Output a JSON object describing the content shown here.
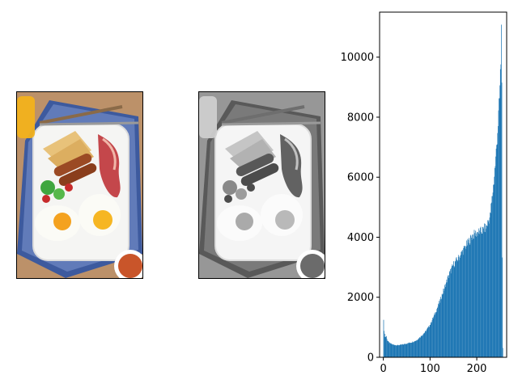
{
  "figure": {
    "panels": [
      {
        "name": "original-color-photo",
        "content_icon": "breakfast-plate-photo"
      },
      {
        "name": "grayscale-photo",
        "content_icon": "breakfast-plate-photo-grayscale"
      }
    ]
  },
  "chart_data": {
    "type": "bar",
    "title": "",
    "xlabel": "",
    "ylabel": "",
    "xlim": [
      -8,
      264
    ],
    "ylim": [
      0,
      11500
    ],
    "xticks": [
      0,
      100,
      200
    ],
    "yticks": [
      0,
      2000,
      4000,
      6000,
      8000,
      10000
    ],
    "xtick_labels": [
      "0",
      "100",
      "200"
    ],
    "ytick_labels": [
      "0",
      "2000",
      "4000",
      "6000",
      "8000",
      "10000"
    ],
    "bar_color": "#1f77b4",
    "grid": false,
    "bins": 256,
    "key_points": [
      [
        0,
        1300
      ],
      [
        1,
        850
      ],
      [
        2,
        700
      ],
      [
        3,
        780
      ],
      [
        4,
        680
      ],
      [
        6,
        700
      ],
      [
        8,
        560
      ],
      [
        12,
        480
      ],
      [
        20,
        420
      ],
      [
        30,
        400
      ],
      [
        40,
        420
      ],
      [
        50,
        460
      ],
      [
        60,
        500
      ],
      [
        70,
        560
      ],
      [
        80,
        700
      ],
      [
        90,
        860
      ],
      [
        100,
        1100
      ],
      [
        110,
        1450
      ],
      [
        120,
        1850
      ],
      [
        130,
        2300
      ],
      [
        140,
        2750
      ],
      [
        150,
        3100
      ],
      [
        160,
        3300
      ],
      [
        170,
        3550
      ],
      [
        180,
        3800
      ],
      [
        190,
        4050
      ],
      [
        200,
        4150
      ],
      [
        210,
        4200
      ],
      [
        220,
        4350
      ],
      [
        228,
        4700
      ],
      [
        235,
        5700
      ],
      [
        240,
        6600
      ],
      [
        245,
        7800
      ],
      [
        248,
        8600
      ],
      [
        250,
        9400
      ],
      [
        251,
        9900
      ],
      [
        252,
        10950
      ],
      [
        253,
        9500
      ],
      [
        254,
        3200
      ],
      [
        255,
        300
      ]
    ]
  }
}
